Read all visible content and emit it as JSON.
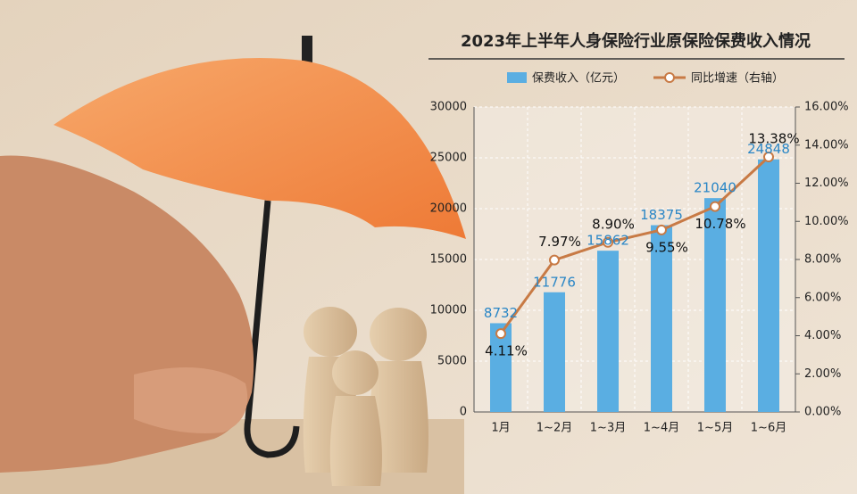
{
  "chart_data": {
    "type": "bar-line",
    "title": "2023年上半年人身保险行业原保险保费收入情况",
    "categories": [
      "1月",
      "1~2月",
      "1~3月",
      "1~4月",
      "1~5月",
      "1~6月"
    ],
    "series": [
      {
        "name": "保费收入（亿元）",
        "type": "bar",
        "color": "#5aaee2",
        "values": [
          8732,
          11776,
          15862,
          18375,
          21040,
          24848
        ]
      },
      {
        "name": "同比增速（右轴）",
        "type": "line",
        "axis": "y2",
        "color": "#c87a45",
        "values": [
          4.11,
          7.97,
          8.9,
          9.55,
          10.78,
          13.38
        ],
        "value_labels": [
          "4.11%",
          "7.97%",
          "8.90%",
          "9.55%",
          "10.78%",
          "13.38%"
        ]
      }
    ],
    "ylim": [
      0,
      30000
    ],
    "yticks": [
      0,
      5000,
      10000,
      15000,
      20000,
      25000,
      30000
    ],
    "y2lim": [
      0,
      16
    ],
    "y2ticks": [
      {
        "value": 0,
        "label": "0.00%"
      },
      {
        "value": 2,
        "label": "2.00%"
      },
      {
        "value": 4,
        "label": "4.00%"
      },
      {
        "value": 6,
        "label": "6.00%"
      },
      {
        "value": 8,
        "label": "8.00%"
      },
      {
        "value": 10,
        "label": "10.00%"
      },
      {
        "value": 12,
        "label": "12.00%"
      },
      {
        "value": 14,
        "label": "14.00%"
      },
      {
        "value": 16,
        "label": "16.00%"
      }
    ],
    "grid": true,
    "legend": "top"
  }
}
